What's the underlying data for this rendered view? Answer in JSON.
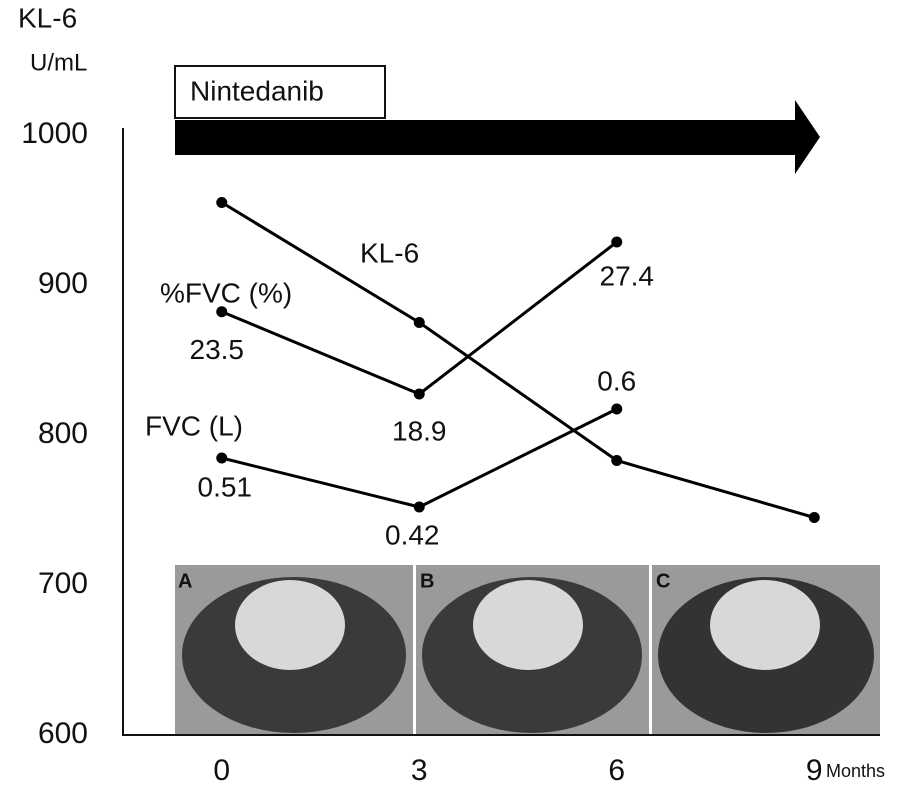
{
  "chart_data": {
    "type": "line",
    "y_label": "KL-6",
    "y_unit": "U/mL",
    "x_unit": "Months",
    "annotation": "Nintedanib",
    "panel_labels": [
      "A",
      "B",
      "C"
    ],
    "x": [
      0,
      3,
      6,
      9
    ],
    "xlim": [
      -1.5,
      10.5
    ],
    "xticks": [
      0,
      3,
      6,
      9
    ],
    "ylim": [
      600,
      1000
    ],
    "yticks": [
      600,
      700,
      800,
      900,
      1000
    ],
    "grid": false,
    "series": [
      {
        "name": "KL-6",
        "color": "#000000",
        "values": [
          955,
          875,
          783,
          745
        ]
      },
      {
        "name": "%FVC (%)",
        "color": "#000000",
        "values": [
          23.5,
          18.9,
          27.4,
          null
        ]
      },
      {
        "name": "FVC (L)",
        "color": "#000000",
        "values": [
          0.51,
          0.42,
          0.6,
          null
        ]
      }
    ]
  }
}
